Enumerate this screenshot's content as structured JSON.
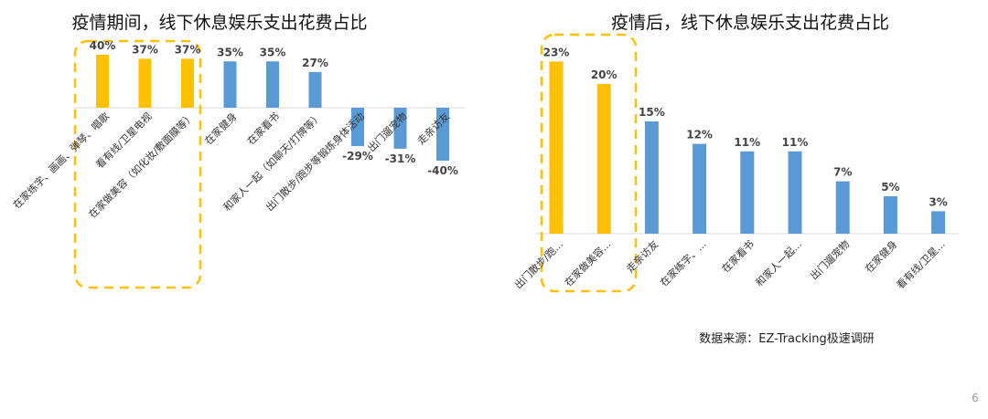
{
  "page_number": "6",
  "source_note": "数据来源：EZ-Tracking极速调研",
  "colors": {
    "highlight": "#FFC000",
    "normal": "#5B9BD5",
    "dash": "#FFC000"
  },
  "chart_data": [
    {
      "type": "bar",
      "title": "疫情期间，线下休息娱乐支出花费占比",
      "categories": [
        "在家练字、画画、弹琴、唱歌",
        "看有线/卫星电视",
        "在家做美容（如化妆/敷面膜等）",
        "在家健身",
        "在家看书",
        "和家人一起（如聊天/打牌等）",
        "出门散步/跑步等锻炼身体活动",
        "出门遛宠物",
        "走亲访友"
      ],
      "values": [
        40,
        37,
        37,
        35,
        35,
        27,
        -29,
        -31,
        -40
      ],
      "value_labels": [
        "40%",
        "37%",
        "37%",
        "35%",
        "35%",
        "27%",
        "-29%",
        "-31%",
        "-40%"
      ],
      "highlighted": [
        true,
        true,
        true,
        false,
        false,
        false,
        false,
        false,
        false
      ],
      "ylim": [
        -45,
        45
      ],
      "grid": false
    },
    {
      "type": "bar",
      "title": "疫情后，线下休息娱乐支出花费占比",
      "categories": [
        "出门散步/跑...",
        "在家做美容...",
        "走亲访友",
        "在家练字、...",
        "在家看书",
        "和家人一起...",
        "出门遛宠物",
        "在家健身",
        "看有线/卫星..."
      ],
      "values": [
        23,
        20,
        15,
        12,
        11,
        11,
        7,
        5,
        3
      ],
      "value_labels": [
        "23%",
        "20%",
        "15%",
        "12%",
        "11%",
        "11%",
        "7%",
        "5%",
        "3%"
      ],
      "highlighted": [
        true,
        true,
        false,
        false,
        false,
        false,
        false,
        false,
        false
      ],
      "ylim": [
        0,
        25
      ],
      "grid": false
    }
  ]
}
